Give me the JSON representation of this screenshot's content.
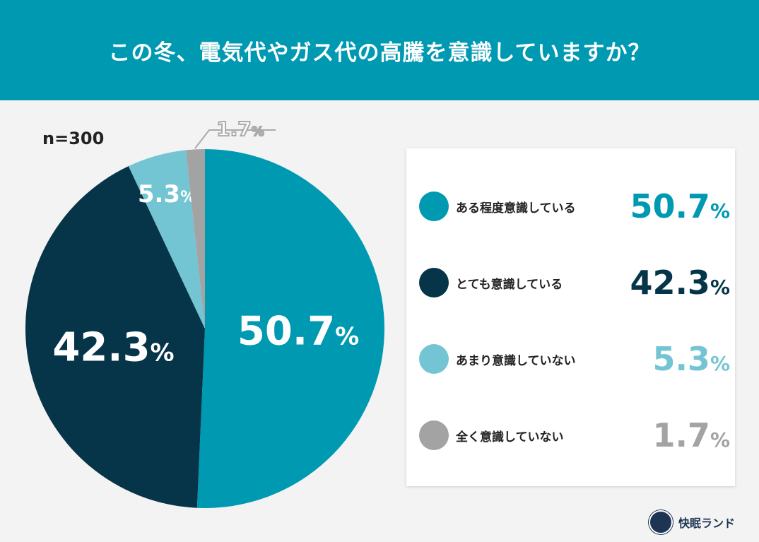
{
  "title": "この冬、電気代やガス代の高騰を意識していますか？",
  "sample": "n=300",
  "brand": "快眠ランド",
  "chart_data": {
    "type": "pie",
    "categories": [
      "ある程度意識している",
      "とても意識している",
      "あまり意識していない",
      "全く意識していない"
    ],
    "values": [
      50.7,
      42.3,
      5.3,
      1.7
    ],
    "labels": [
      "50.7",
      "42.3",
      "5.3",
      "1.7"
    ],
    "unit": "%",
    "colors": [
      "#0099b2",
      "#06354a",
      "#73c5d3",
      "#a3a3a3"
    ],
    "legend": "right"
  }
}
